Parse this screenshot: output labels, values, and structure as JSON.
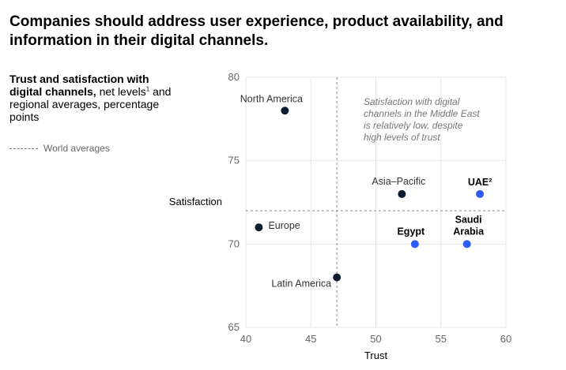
{
  "headline": "Companies should address user experience, product availability, and information in their digital channels.",
  "subtitle": {
    "bold": "Trust and satisfaction with digital channels,",
    "regular": " net levels",
    "footnote": "1",
    "rest": " and regional averages, percentage points"
  },
  "legend": {
    "label": "World averages"
  },
  "colors": {
    "region": "#0b1d2e",
    "middle_east": "#2f5cf5",
    "grid": "#e6e6e6",
    "reference": "#888888"
  },
  "chart_data": {
    "type": "scatter",
    "xlabel": "Trust",
    "ylabel": "Satisfaction",
    "xlim": [
      40,
      60
    ],
    "ylim": [
      65,
      80
    ],
    "xticks": [
      40,
      45,
      50,
      55,
      60
    ],
    "yticks": [
      65,
      70,
      75,
      80
    ],
    "grid": true,
    "reference_lines": {
      "x": 47,
      "y": 72
    },
    "annotation": "Satisfaction with digital channels in the Middle East is relatively low, despite high levels of trust",
    "points": [
      {
        "label": "North America",
        "x": 43,
        "y": 78,
        "group": "region"
      },
      {
        "label": "Asia–Pacific",
        "x": 52,
        "y": 73,
        "group": "region"
      },
      {
        "label": "UAE²",
        "x": 58,
        "y": 73,
        "group": "middle_east"
      },
      {
        "label": "Europe",
        "x": 41,
        "y": 71,
        "group": "region"
      },
      {
        "label": "Egypt",
        "x": 53,
        "y": 70,
        "group": "middle_east"
      },
      {
        "label": "Saudi Arabia",
        "x": 57,
        "y": 70,
        "group": "middle_east"
      },
      {
        "label": "Latin America",
        "x": 47,
        "y": 68,
        "group": "region"
      }
    ]
  }
}
